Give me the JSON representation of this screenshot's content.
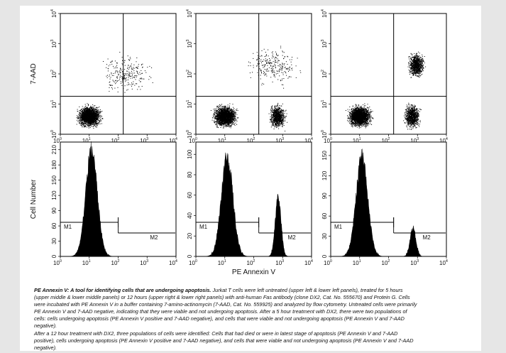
{
  "figure": {
    "top_y_label": "7-AAD",
    "bottom_y_label": "Cell Number",
    "x_label": "PE Annexin V",
    "log_ticks": [
      "10",
      "10",
      "10",
      "10",
      "10"
    ],
    "log_exponents": [
      "0",
      "1",
      "2",
      "3",
      "4"
    ],
    "marker_labels": {
      "m1": "M1",
      "m2": "M2"
    }
  },
  "chart_data": [
    {
      "type": "scatter",
      "panel": "upper left",
      "xscale": "log",
      "yscale": "log",
      "xlim": [
        1,
        10000
      ],
      "ylim": [
        1,
        10000
      ],
      "clusters": [
        {
          "x": 10,
          "y": 4,
          "density": "high"
        },
        {
          "x": 200,
          "y": 100,
          "density": "sparse"
        }
      ],
      "quadrant_lines": {
        "x": 150,
        "y": 18
      }
    },
    {
      "type": "scatter",
      "panel": "upper middle",
      "xscale": "log",
      "yscale": "log",
      "xlim": [
        1,
        10000
      ],
      "ylim": [
        1,
        10000
      ],
      "clusters": [
        {
          "x": 10,
          "y": 4,
          "density": "high"
        },
        {
          "x": 650,
          "y": 4,
          "density": "medium"
        },
        {
          "x": 500,
          "y": 200,
          "density": "sparse"
        }
      ],
      "quadrant_lines": {
        "x": 150,
        "y": 18
      }
    },
    {
      "type": "scatter",
      "panel": "upper right",
      "xscale": "log",
      "yscale": "log",
      "xlim": [
        1,
        10000
      ],
      "ylim": [
        1,
        10000
      ],
      "clusters": [
        {
          "x": 10,
          "y": 4,
          "density": "high"
        },
        {
          "x": 650,
          "y": 4,
          "density": "medium"
        },
        {
          "x": 900,
          "y": 200,
          "density": "medium"
        }
      ],
      "quadrant_lines": {
        "x": 150,
        "y": 18
      }
    },
    {
      "type": "area",
      "panel": "lower left",
      "xscale": "log",
      "xlim": [
        1,
        10000
      ],
      "yticks": [
        0,
        30,
        60,
        90,
        120,
        150,
        180,
        210
      ],
      "ylim": [
        0,
        225
      ],
      "peaks": [
        {
          "x": 12,
          "height": 210
        }
      ],
      "markers": {
        "M1": [
          1,
          100
        ],
        "M2": [
          100,
          10000
        ]
      }
    },
    {
      "type": "area",
      "panel": "lower middle",
      "xscale": "log",
      "xlim": [
        1,
        10000
      ],
      "yticks": [
        0,
        20,
        40,
        60,
        80,
        100
      ],
      "ylim": [
        0,
        112
      ],
      "peaks": [
        {
          "x": 12,
          "height": 98
        },
        {
          "x": 700,
          "height": 58
        }
      ],
      "markers": {
        "M1": [
          1,
          150
        ],
        "M2": [
          150,
          10000
        ]
      }
    },
    {
      "type": "area",
      "panel": "lower right",
      "xscale": "log",
      "xlim": [
        1,
        10000
      ],
      "yticks": [
        0,
        30,
        60,
        90,
        120,
        150
      ],
      "ylim": [
        0,
        170
      ],
      "peaks": [
        {
          "x": 12,
          "height": 150
        },
        {
          "x": 700,
          "height": 43
        }
      ],
      "markers": {
        "M1": [
          1,
          150
        ],
        "M2": [
          150,
          10000
        ]
      }
    }
  ],
  "caption": {
    "title": "PE Annexin V: A tool for identifying cells that are undergoing apoptosis.",
    "body1": "Jurkat T cells were left untreated (upper left & lower left panels), treated for 5 hours (upper middle & lower middle panels) or 12 hours (upper right & lower right panels) with anti-human Fas antibody (clone DX2, Cat. No. 555670) and Protein G. Cells were incubated with PE Annexin V in a buffer containing 7-amino-actinomycin (7-AAD, Cat. No. 559925) and analyzed by flow cytometry. Untreated cells were primarily PE Annexin V and 7-AAD negative, indicating that they were viable and not undergoing apoptosis. After a 5 hour treatment with DX2, there were two populations of cells: cells undergoing apoptosis (PE Annexin V positive and 7-AAD negative), and cells that were viable and not undergoing apoptosis (PE Annexin V and 7-AAD negative).",
    "body2": "After a 12 hour treatment with DX2, three populations of cells were identified: Cells that had died or were in latest stage of apoptosis (PE Annexin V and 7-AAD positive), cells undergoing apoptosis (PE Annexin V positive and 7-AAD negative), and cells that were viable and not undergoing apoptosis (PE Annexin V and 7-AAD negative)."
  }
}
